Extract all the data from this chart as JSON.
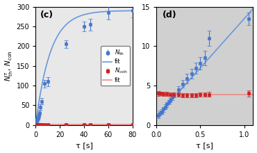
{
  "panel_c": {
    "label": "(c)",
    "blue_x": [
      0.5,
      1.0,
      1.5,
      2.0,
      2.5,
      3.0,
      4.0,
      5.0,
      7.0,
      10.0,
      25.0,
      40.0,
      45.0,
      60.0,
      80.0
    ],
    "blue_y": [
      10,
      12,
      15,
      18,
      25,
      32,
      45,
      60,
      105,
      110,
      205,
      250,
      255,
      285,
      290
    ],
    "blue_yerr": [
      5,
      5,
      5,
      5,
      5,
      6,
      7,
      8,
      10,
      12,
      10,
      12,
      15,
      18,
      18
    ],
    "red_x": [
      0.5,
      1.0,
      1.5,
      2.0,
      2.5,
      3.0,
      4.0,
      5.0,
      7.0,
      10.0,
      25.0,
      40.0,
      45.0,
      60.0,
      80.0
    ],
    "red_y": [
      2,
      2,
      2,
      2,
      2,
      2,
      2,
      2,
      2,
      2,
      2,
      2,
      2,
      2,
      2
    ],
    "red_yerr": [
      1,
      1,
      1,
      1,
      1,
      1,
      1,
      1,
      1,
      1,
      1,
      1,
      1,
      1,
      1
    ],
    "fit_blue_A": 290,
    "fit_blue_tau": 12,
    "fit_red_val": 2.0,
    "xlim": [
      0,
      80
    ],
    "ylim": [
      0,
      300
    ],
    "xticks": [
      0,
      20,
      40,
      60,
      80
    ],
    "yticks": [
      0,
      50,
      100,
      150,
      200,
      250,
      300
    ],
    "xlabel": "τ [s]",
    "bg_color": "#e8e8e8"
  },
  "panel_d": {
    "label": "(d)",
    "blue_x": [
      0.02,
      0.04,
      0.06,
      0.08,
      0.1,
      0.12,
      0.14,
      0.16,
      0.18,
      0.2,
      0.25,
      0.3,
      0.35,
      0.4,
      0.45,
      0.5,
      0.55,
      0.6,
      1.05
    ],
    "blue_y": [
      1.2,
      1.5,
      1.7,
      2.0,
      2.3,
      2.6,
      2.9,
      3.2,
      3.5,
      3.8,
      4.5,
      5.2,
      5.9,
      6.5,
      7.2,
      7.8,
      8.5,
      11.0,
      13.5
    ],
    "blue_yerr": [
      0.3,
      0.3,
      0.3,
      0.3,
      0.3,
      0.3,
      0.3,
      0.3,
      0.3,
      0.3,
      0.4,
      0.5,
      0.6,
      0.6,
      0.7,
      0.8,
      0.9,
      1.0,
      0.8
    ],
    "red_x": [
      0.02,
      0.05,
      0.08,
      0.12,
      0.16,
      0.2,
      0.25,
      0.3,
      0.35,
      0.4,
      0.45,
      0.5,
      0.55,
      0.6,
      1.05
    ],
    "red_y": [
      4.0,
      4.0,
      3.95,
      3.95,
      3.9,
      3.85,
      3.85,
      3.8,
      3.75,
      3.75,
      3.8,
      3.85,
      3.85,
      3.9,
      4.0
    ],
    "red_yerr": [
      0.3,
      0.25,
      0.25,
      0.25,
      0.25,
      0.25,
      0.25,
      0.25,
      0.25,
      0.25,
      0.25,
      0.25,
      0.25,
      0.3,
      0.4
    ],
    "fit_blue_slope": 12.5,
    "fit_blue_intercept": 1.0,
    "fit_red_val": 3.85,
    "xlim": [
      0,
      1.1
    ],
    "ylim": [
      0,
      15
    ],
    "xticks": [
      0,
      0.5,
      1.0
    ],
    "yticks": [
      0,
      5,
      10,
      15
    ],
    "xlabel": "τ [s]",
    "bg_color": "#d0d0d0"
  },
  "blue_color": "#4477cc",
  "red_color": "#cc2222",
  "blue_fit_color": "#6699dd",
  "red_fit_color": "#ee8888"
}
